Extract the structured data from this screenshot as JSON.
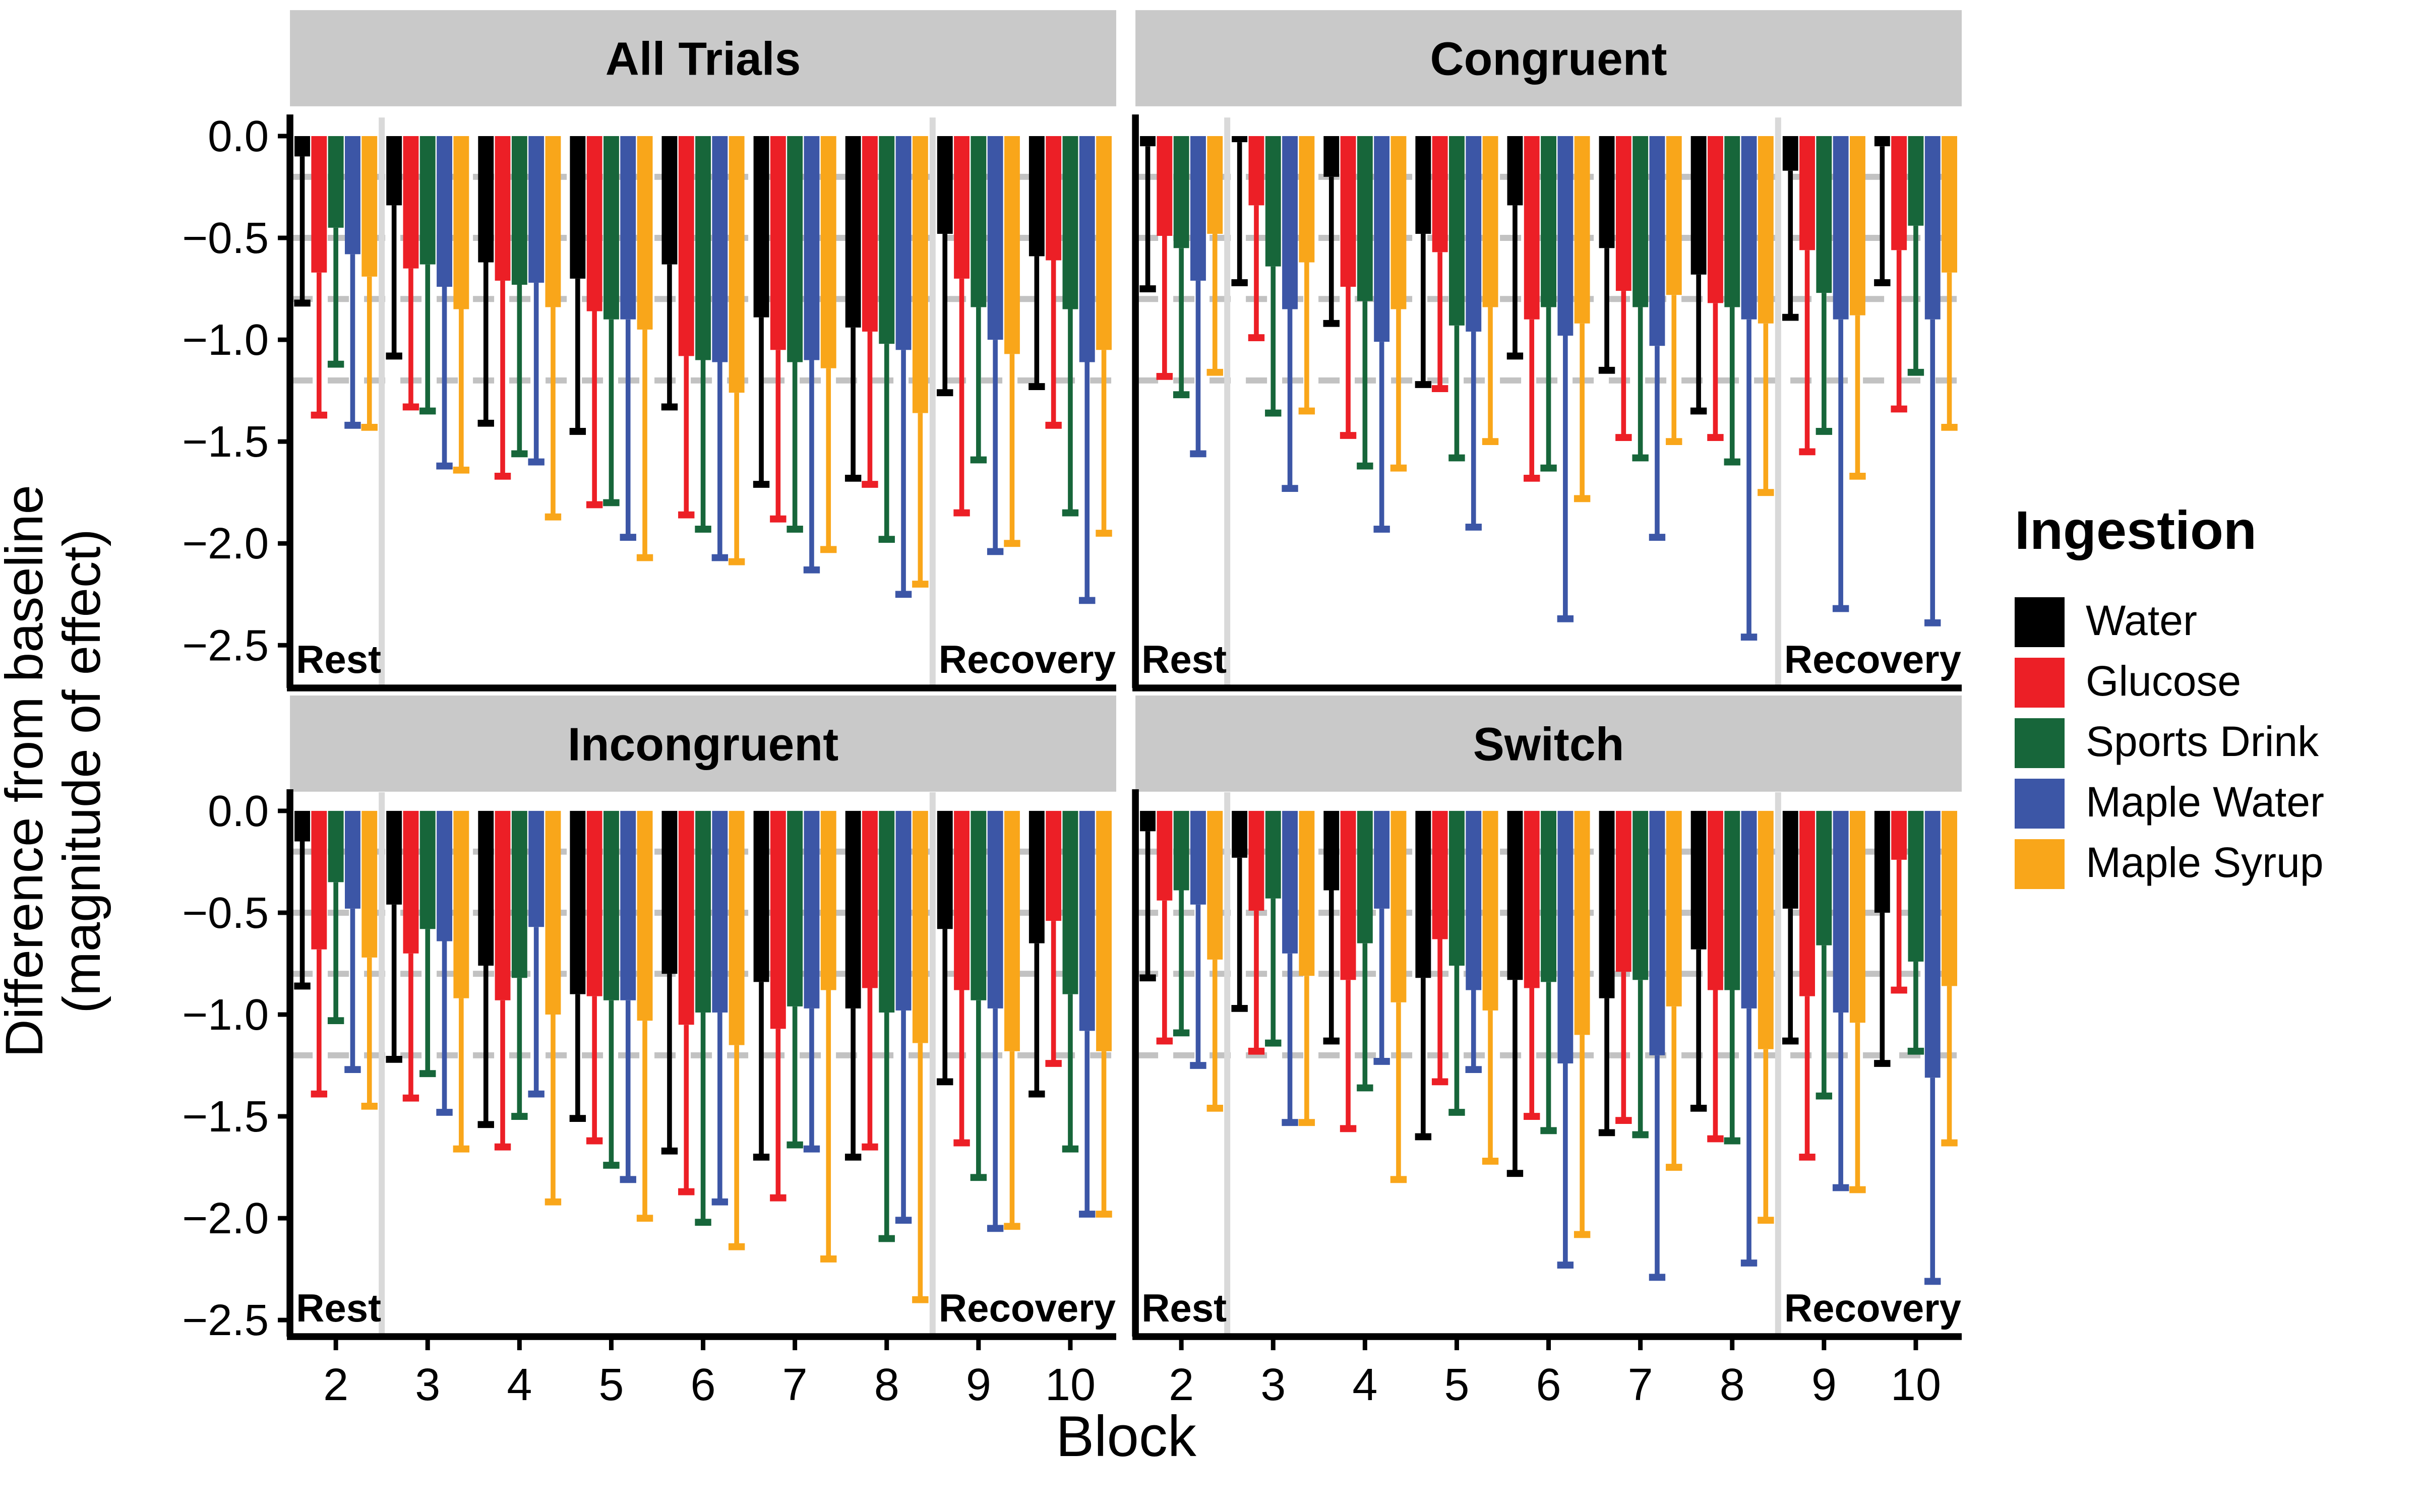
{
  "figure": {
    "x_axis_title": "Block",
    "y_axis_title_line1": "Difference from baseline",
    "y_axis_title_line2": "(magnitude of effect)"
  },
  "legend": {
    "title": "Ingestion",
    "series": [
      {
        "name": "Water",
        "color": "#000000"
      },
      {
        "name": "Glucose",
        "color": "#EC1F26"
      },
      {
        "name": "Sports Drink",
        "color": "#17663A"
      },
      {
        "name": "Maple Water",
        "color": "#3C56A6"
      },
      {
        "name": "Maple Syrup",
        "color": "#F9A61A"
      }
    ]
  },
  "chart_data": {
    "type": "bar",
    "categories": [
      2,
      3,
      4,
      5,
      6,
      7,
      8,
      9,
      10
    ],
    "xlabel": "Block",
    "ylabel": "Difference from baseline (magnitude of effect)",
    "ylim": [
      0.09,
      -2.72
    ],
    "y_ticks": [
      0,
      -0.5,
      -1.0,
      -1.5,
      -2.0,
      -2.5
    ],
    "y_tick_labels": [
      "0.0",
      "−0.5",
      "−1.0",
      "−1.5",
      "−2.0",
      "−2.5"
    ],
    "dashed_reference_lines": [
      -0.2,
      -0.5,
      -0.8,
      -1.2
    ],
    "grid": "dashed-reference-only",
    "legend_position": "right",
    "annotations": {
      "rest": "Rest",
      "recovery": "Recovery"
    },
    "rest_separator_after_block": 2,
    "recovery_separator_after_block": 8,
    "error_bars": "lower whisker with cap",
    "panels": [
      {
        "title": "All Trials",
        "series": [
          {
            "name": "Water",
            "values": [
              -0.1,
              -0.34,
              -0.62,
              -0.7,
              -0.63,
              -0.89,
              -0.94,
              -0.48,
              -0.59
            ],
            "whisker_ends": [
              -0.82,
              -1.08,
              -1.41,
              -1.45,
              -1.33,
              -1.71,
              -1.68,
              -1.26,
              -1.23
            ]
          },
          {
            "name": "Glucose",
            "values": [
              -0.67,
              -0.65,
              -0.71,
              -0.86,
              -1.08,
              -1.05,
              -0.96,
              -0.7,
              -0.61
            ],
            "whisker_ends": [
              -1.37,
              -1.33,
              -1.67,
              -1.81,
              -1.86,
              -1.88,
              -1.71,
              -1.85,
              -1.42
            ]
          },
          {
            "name": "Sports Drink",
            "values": [
              -0.45,
              -0.63,
              -0.73,
              -0.9,
              -1.1,
              -1.11,
              -1.02,
              -0.84,
              -0.85
            ],
            "whisker_ends": [
              -1.12,
              -1.35,
              -1.56,
              -1.8,
              -1.93,
              -1.93,
              -1.98,
              -1.59,
              -1.85
            ]
          },
          {
            "name": "Maple Water",
            "values": [
              -0.58,
              -0.74,
              -0.72,
              -0.9,
              -1.11,
              -1.1,
              -1.05,
              -1.0,
              -1.11
            ],
            "whisker_ends": [
              -1.42,
              -1.62,
              -1.6,
              -1.97,
              -2.07,
              -2.13,
              -2.25,
              -2.04,
              -2.28
            ]
          },
          {
            "name": "Maple Syrup",
            "values": [
              -0.69,
              -0.85,
              -0.84,
              -0.95,
              -1.26,
              -1.14,
              -1.36,
              -1.07,
              -1.05
            ],
            "whisker_ends": [
              -1.43,
              -1.64,
              -1.87,
              -2.07,
              -2.09,
              -2.03,
              -2.2,
              -2.0,
              -1.95
            ]
          }
        ]
      },
      {
        "title": "Congruent",
        "series": [
          {
            "name": "Water",
            "values": [
              -0.05,
              -0.03,
              -0.2,
              -0.48,
              -0.34,
              -0.55,
              -0.68,
              -0.17,
              -0.05
            ],
            "whisker_ends": [
              -0.75,
              -0.72,
              -0.92,
              -1.22,
              -1.08,
              -1.15,
              -1.35,
              -0.89,
              -0.72
            ]
          },
          {
            "name": "Glucose",
            "values": [
              -0.49,
              -0.34,
              -0.74,
              -0.57,
              -0.9,
              -0.76,
              -0.82,
              -0.56,
              -0.56
            ],
            "whisker_ends": [
              -1.18,
              -0.99,
              -1.47,
              -1.24,
              -1.68,
              -1.48,
              -1.48,
              -1.55,
              -1.34
            ]
          },
          {
            "name": "Sports Drink",
            "values": [
              -0.55,
              -0.64,
              -0.81,
              -0.93,
              -0.84,
              -0.84,
              -0.84,
              -0.77,
              -0.44
            ],
            "whisker_ends": [
              -1.27,
              -1.36,
              -1.62,
              -1.58,
              -1.63,
              -1.58,
              -1.6,
              -1.45,
              -1.16
            ]
          },
          {
            "name": "Maple Water",
            "values": [
              -0.71,
              -0.85,
              -1.01,
              -0.96,
              -0.98,
              -1.03,
              -0.9,
              -0.9,
              -0.9
            ],
            "whisker_ends": [
              -1.56,
              -1.73,
              -1.93,
              -1.92,
              -2.37,
              -1.97,
              -2.46,
              -2.32,
              -2.39
            ]
          },
          {
            "name": "Maple Syrup",
            "values": [
              -0.48,
              -0.62,
              -0.85,
              -0.84,
              -0.92,
              -0.78,
              -0.92,
              -0.88,
              -0.67
            ],
            "whisker_ends": [
              -1.16,
              -1.35,
              -1.63,
              -1.5,
              -1.78,
              -1.5,
              -1.75,
              -1.67,
              -1.43
            ]
          }
        ]
      },
      {
        "title": "Incongruent",
        "series": [
          {
            "name": "Water",
            "values": [
              -0.15,
              -0.46,
              -0.76,
              -0.9,
              -0.8,
              -0.84,
              -0.97,
              -0.58,
              -0.65
            ],
            "whisker_ends": [
              -0.86,
              -1.22,
              -1.54,
              -1.51,
              -1.67,
              -1.7,
              -1.7,
              -1.33,
              -1.39
            ]
          },
          {
            "name": "Glucose",
            "values": [
              -0.68,
              -0.7,
              -0.93,
              -0.91,
              -1.05,
              -1.07,
              -0.87,
              -0.88,
              -0.54
            ],
            "whisker_ends": [
              -1.39,
              -1.41,
              -1.65,
              -1.62,
              -1.87,
              -1.9,
              -1.65,
              -1.63,
              -1.24
            ]
          },
          {
            "name": "Sports Drink",
            "values": [
              -0.35,
              -0.58,
              -0.82,
              -0.93,
              -0.99,
              -0.96,
              -0.99,
              -0.93,
              -0.9
            ],
            "whisker_ends": [
              -1.03,
              -1.29,
              -1.5,
              -1.74,
              -2.02,
              -1.64,
              -2.1,
              -1.8,
              -1.66
            ]
          },
          {
            "name": "Maple Water",
            "values": [
              -0.48,
              -0.64,
              -0.57,
              -0.93,
              -0.99,
              -0.97,
              -0.98,
              -0.97,
              -1.08
            ],
            "whisker_ends": [
              -1.27,
              -1.48,
              -1.39,
              -1.81,
              -1.92,
              -1.66,
              -2.01,
              -2.05,
              -1.98
            ]
          },
          {
            "name": "Maple Syrup",
            "values": [
              -0.72,
              -0.92,
              -1.0,
              -1.03,
              -1.15,
              -0.88,
              -1.14,
              -1.18,
              -1.18
            ],
            "whisker_ends": [
              -1.45,
              -1.66,
              -1.92,
              -2.0,
              -2.14,
              -2.2,
              -2.4,
              -2.04,
              -1.98
            ]
          }
        ]
      },
      {
        "title": "Switch",
        "series": [
          {
            "name": "Water",
            "values": [
              -0.1,
              -0.23,
              -0.39,
              -0.82,
              -0.83,
              -0.92,
              -0.68,
              -0.48,
              -0.5
            ],
            "whisker_ends": [
              -0.82,
              -0.97,
              -1.13,
              -1.6,
              -1.78,
              -1.58,
              -1.46,
              -1.13,
              -1.24
            ]
          },
          {
            "name": "Glucose",
            "values": [
              -0.44,
              -0.49,
              -0.83,
              -0.63,
              -0.87,
              -0.79,
              -0.88,
              -0.91,
              -0.24
            ],
            "whisker_ends": [
              -1.13,
              -1.18,
              -1.56,
              -1.33,
              -1.5,
              -1.52,
              -1.61,
              -1.7,
              -0.88
            ]
          },
          {
            "name": "Sports Drink",
            "values": [
              -0.39,
              -0.43,
              -0.65,
              -0.76,
              -0.84,
              -0.83,
              -0.88,
              -0.66,
              -0.74
            ],
            "whisker_ends": [
              -1.09,
              -1.14,
              -1.36,
              -1.48,
              -1.57,
              -1.59,
              -1.62,
              -1.4,
              -1.18
            ]
          },
          {
            "name": "Maple Water",
            "values": [
              -0.46,
              -0.7,
              -0.48,
              -0.88,
              -1.24,
              -1.2,
              -0.97,
              -0.99,
              -1.31
            ],
            "whisker_ends": [
              -1.25,
              -1.53,
              -1.23,
              -1.27,
              -2.23,
              -2.29,
              -2.22,
              -1.85,
              -2.31
            ]
          },
          {
            "name": "Maple Syrup",
            "values": [
              -0.73,
              -0.81,
              -0.94,
              -0.98,
              -1.1,
              -0.96,
              -1.17,
              -1.04,
              -0.86
            ],
            "whisker_ends": [
              -1.46,
              -1.53,
              -1.81,
              -1.72,
              -2.08,
              -1.75,
              -2.01,
              -1.86,
              -1.63
            ]
          }
        ]
      }
    ],
    "styles": {
      "title_strip_color": "#C9C9C9",
      "dashed_line_color": "#C2C2C2",
      "separator_color": "#D9D9D9",
      "axis_color": "#000000"
    }
  }
}
